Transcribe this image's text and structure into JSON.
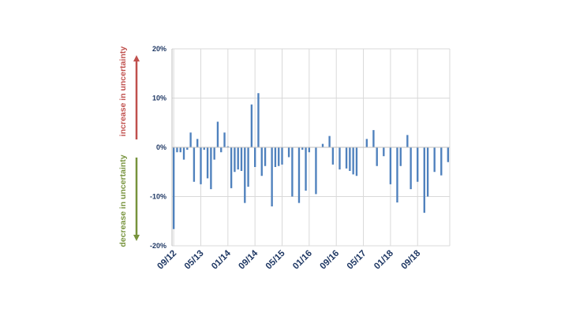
{
  "chart_data": {
    "type": "bar",
    "ylim": [
      -0.2,
      0.2
    ],
    "ytick_values": [
      0.2,
      0.1,
      0.0,
      -0.1,
      -0.2
    ],
    "ytick_labels": [
      "20%",
      "10%",
      "0%",
      "-10%",
      "-20%"
    ],
    "grid": true,
    "xtick_labels": [
      "09/12",
      "05/13",
      "01/14",
      "09/14",
      "05/15",
      "01/16",
      "09/16",
      "05/17",
      "01/18",
      "09/18"
    ],
    "xtick_every": 8,
    "values": [
      -0.166,
      -0.01,
      -0.01,
      -0.025,
      -0.005,
      0.03,
      -0.07,
      0.017,
      -0.075,
      -0.005,
      -0.063,
      -0.085,
      -0.025,
      0.052,
      -0.01,
      0.03,
      0.002,
      -0.083,
      -0.05,
      -0.045,
      -0.048,
      -0.113,
      -0.08,
      0.087,
      -0.04,
      0.11,
      -0.058,
      -0.038,
      0.0,
      -0.12,
      -0.04,
      -0.038,
      -0.035,
      0.0,
      -0.02,
      -0.1,
      0.0,
      -0.113,
      -0.005,
      -0.088,
      -0.01,
      0.0,
      -0.095,
      0.0,
      0.007,
      0.0,
      0.023,
      -0.035,
      0.0,
      -0.045,
      0.0,
      -0.043,
      -0.048,
      -0.055,
      -0.058,
      0.0,
      0.0,
      0.017,
      0.0,
      0.035,
      -0.038,
      0.0,
      -0.018,
      0.0,
      -0.075,
      0.0,
      -0.112,
      -0.038,
      0.0,
      0.025,
      -0.085,
      0.0,
      -0.07,
      0.0,
      -0.133,
      -0.1,
      0.0,
      -0.05,
      0.0,
      -0.057,
      0.0,
      -0.03
    ],
    "bar_color": "#4f81bd"
  },
  "annotations": {
    "up_label": "increase in uncertainty",
    "up_color": "#c0504d",
    "down_label": "decrease in uncertainty",
    "down_color": "#77933c"
  }
}
